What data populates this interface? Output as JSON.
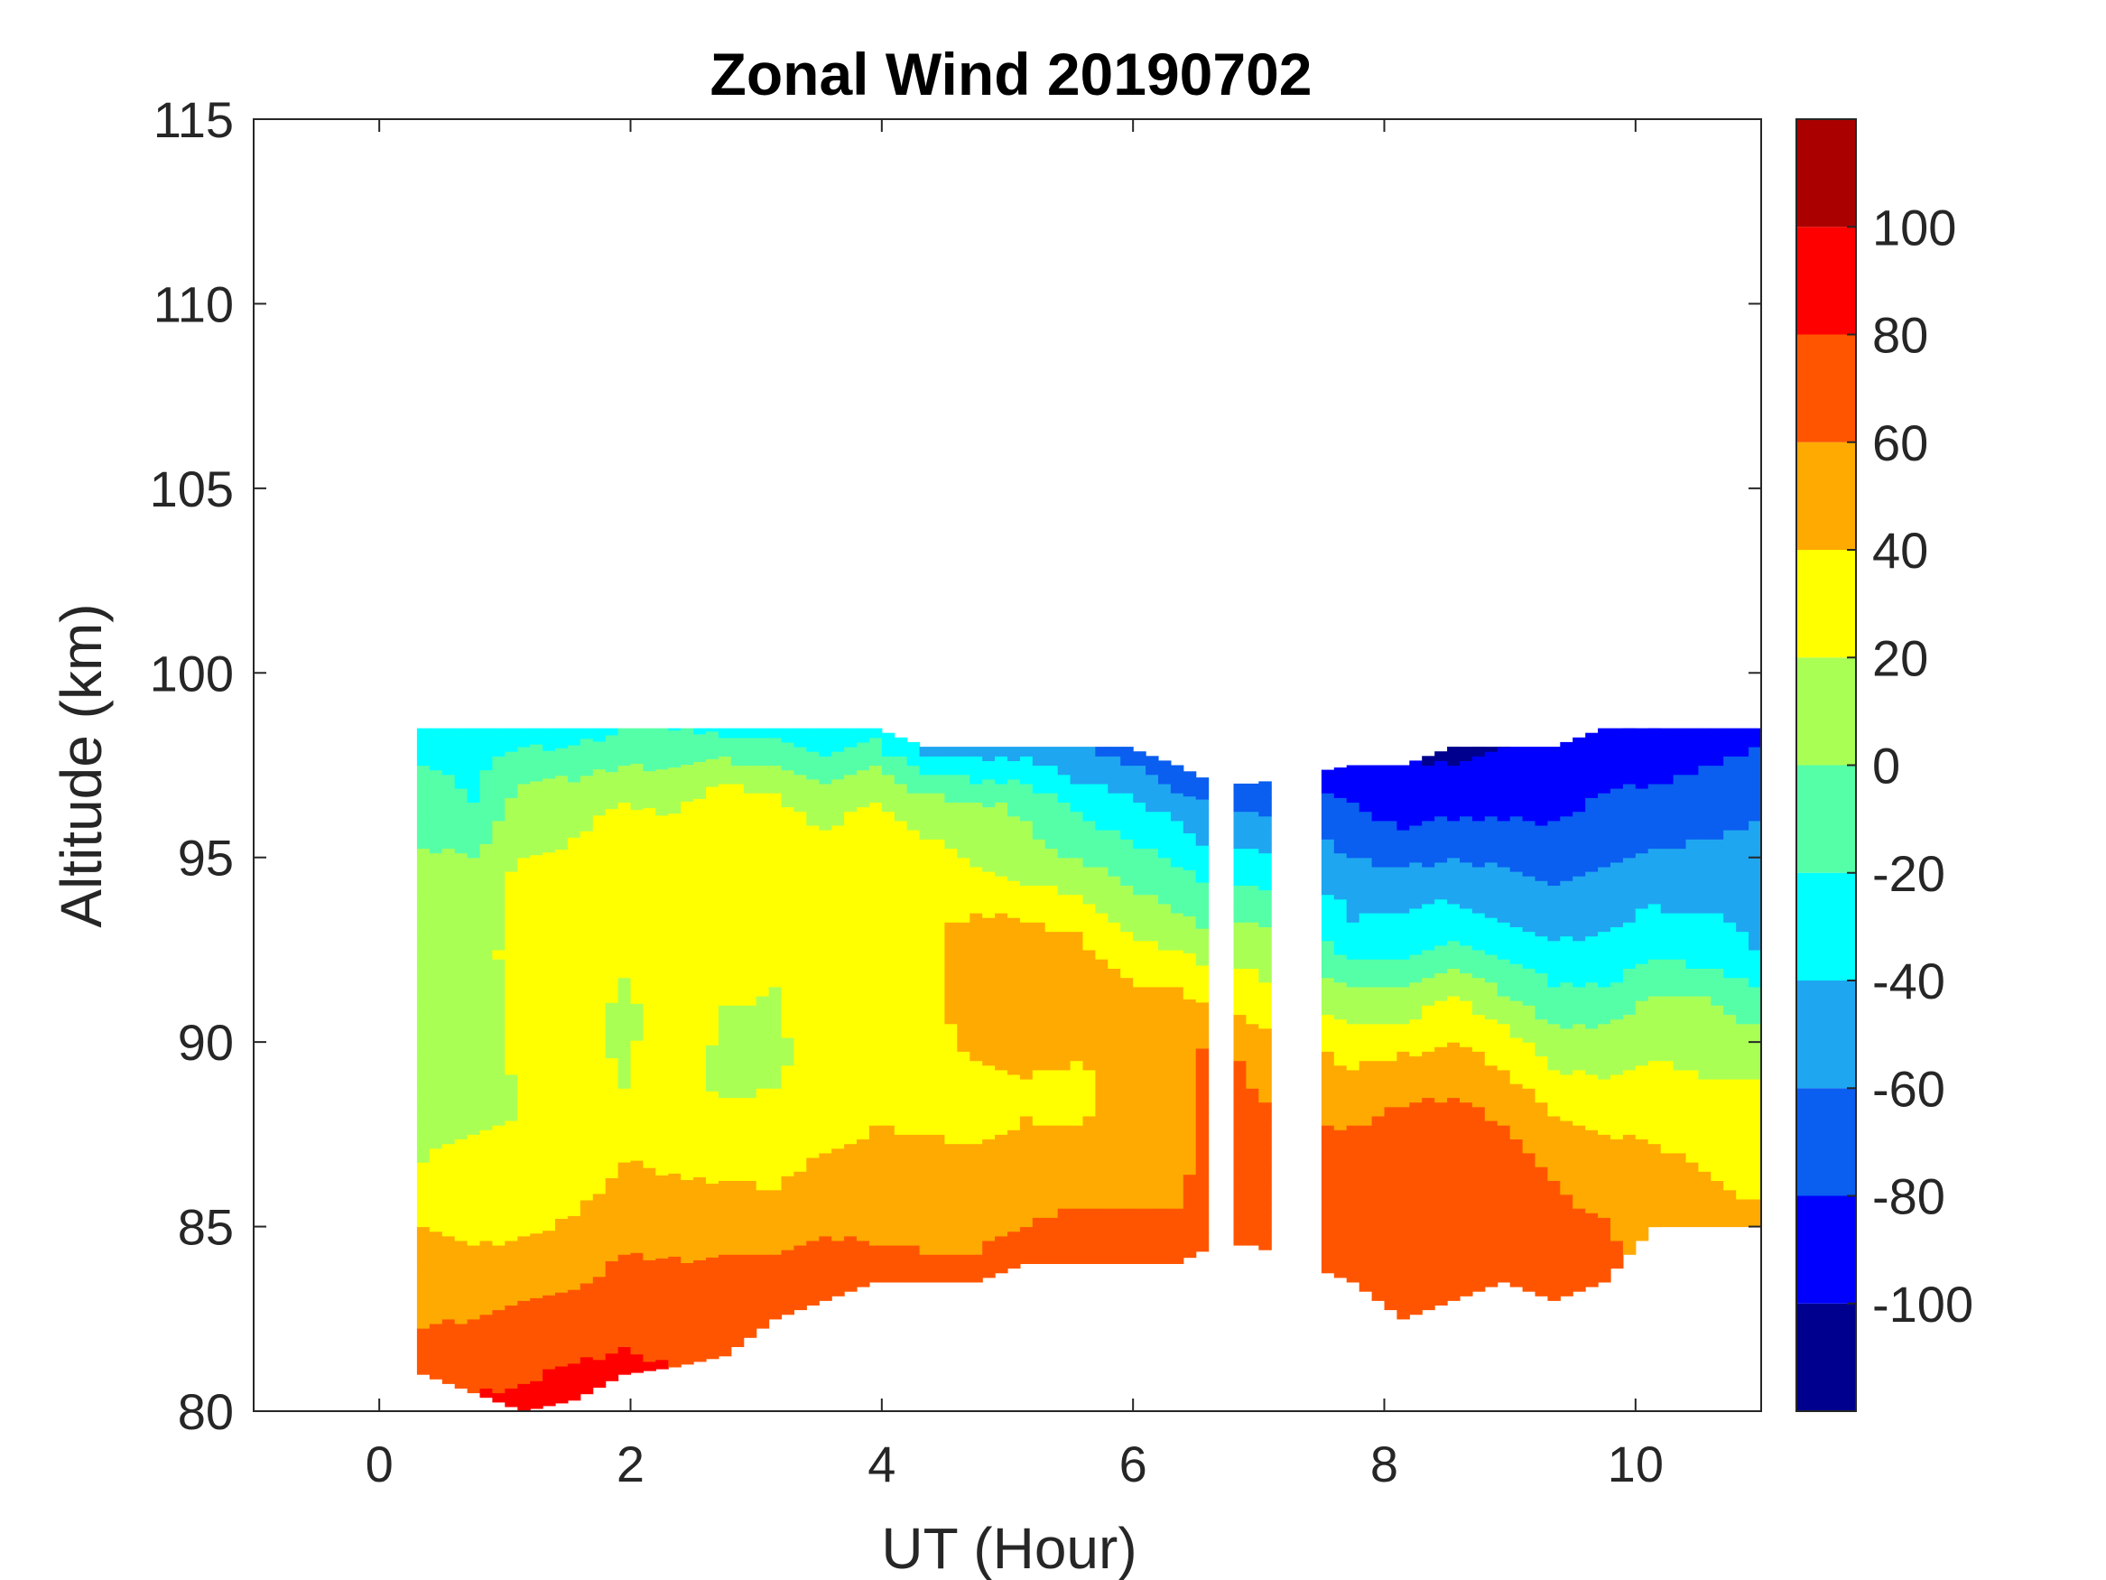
{
  "chart_data": {
    "type": "heatmap",
    "title": "Zonal Wind 20190702",
    "xlabel": "UT (Hour)",
    "ylabel": "Altitude (km)",
    "xlim": [
      -1,
      11
    ],
    "ylim": [
      80,
      115
    ],
    "x_ticks": [
      0,
      2,
      4,
      6,
      8,
      10
    ],
    "y_ticks": [
      80,
      85,
      90,
      95,
      100,
      105,
      110,
      115
    ],
    "colorbar": {
      "range": [
        -120,
        120
      ],
      "ticks": [
        -100,
        -80,
        -60,
        -40,
        -20,
        0,
        20,
        40,
        60,
        80,
        100
      ],
      "levels": [
        {
          "min": -120,
          "max": -100,
          "color": "#00008f"
        },
        {
          "min": -100,
          "max": -80,
          "color": "#0000ff"
        },
        {
          "min": -80,
          "max": -60,
          "color": "#0a5ef0"
        },
        {
          "min": -60,
          "max": -40,
          "color": "#1fa6f0"
        },
        {
          "min": -40,
          "max": -20,
          "color": "#00ffff"
        },
        {
          "min": -20,
          "max": 0,
          "color": "#55ffa8"
        },
        {
          "min": 0,
          "max": 20,
          "color": "#aaff55"
        },
        {
          "min": 20,
          "max": 40,
          "color": "#ffff00"
        },
        {
          "min": 40,
          "max": 60,
          "color": "#ffaa00"
        },
        {
          "min": 60,
          "max": 80,
          "color": "#ff5500"
        },
        {
          "min": 80,
          "max": 100,
          "color": "#ff0000"
        },
        {
          "min": 100,
          "max": 120,
          "color": "#aa0000"
        }
      ]
    },
    "data_columns": [
      {
        "x": 0.3,
        "ymin": 81.0,
        "ymax": 98.5,
        "wind": [
          70,
          55,
          40,
          20,
          15,
          10,
          12,
          5,
          -10,
          -30
        ]
      },
      {
        "x": 0.7,
        "ymin": 80.5,
        "ymax": 98.5,
        "wind": [
          80,
          60,
          40,
          25,
          15,
          12,
          10,
          8,
          -20,
          -30
        ]
      },
      {
        "x": 1.1,
        "ymin": 80.0,
        "ymax": 98.5,
        "wind": [
          85,
          70,
          45,
          25,
          20,
          25,
          30,
          25,
          10,
          -30
        ]
      },
      {
        "x": 1.5,
        "ymin": 80.3,
        "ymax": 98.5,
        "wind": [
          90,
          70,
          50,
          30,
          25,
          28,
          30,
          25,
          15,
          -30
        ]
      },
      {
        "x": 1.9,
        "ymin": 81.0,
        "ymax": 98.5,
        "wind": [
          85,
          70,
          55,
          40,
          20,
          15,
          25,
          35,
          20,
          -20
        ]
      },
      {
        "x": 2.3,
        "ymin": 81.2,
        "ymax": 98.5,
        "wind": [
          80,
          70,
          50,
          35,
          28,
          30,
          35,
          38,
          15,
          -20
        ]
      },
      {
        "x": 2.7,
        "ymin": 81.5,
        "ymax": 98.5,
        "wind": [
          80,
          70,
          50,
          30,
          15,
          20,
          30,
          40,
          30,
          -25
        ]
      },
      {
        "x": 3.1,
        "ymin": 82.5,
        "ymax": 98.5,
        "wind": [
          70,
          60,
          40,
          25,
          15,
          20,
          30,
          35,
          20,
          -25
        ]
      },
      {
        "x": 3.5,
        "ymin": 83.0,
        "ymax": 98.5,
        "wind": [
          75,
          60,
          45,
          30,
          30,
          35,
          30,
          25,
          10,
          -40
        ]
      },
      {
        "x": 3.9,
        "ymin": 83.5,
        "ymax": 98.5,
        "wind": [
          70,
          55,
          45,
          35,
          30,
          30,
          35,
          40,
          15,
          -30
        ]
      },
      {
        "x": 4.3,
        "ymin": 83.5,
        "ymax": 98.0,
        "wind": [
          65,
          55,
          45,
          35,
          30,
          30,
          35,
          30,
          10,
          -45
        ]
      },
      {
        "x": 4.7,
        "ymin": 83.5,
        "ymax": 98.0,
        "wind": [
          65,
          55,
          45,
          30,
          45,
          60,
          45,
          20,
          5,
          -50
        ]
      },
      {
        "x": 5.1,
        "ymin": 84.0,
        "ymax": 98.0,
        "wind": [
          70,
          55,
          45,
          35,
          55,
          55,
          40,
          10,
          -5,
          -50
        ]
      },
      {
        "x": 5.5,
        "ymin": 84.0,
        "ymax": 98.0,
        "wind": [
          75,
          60,
          45,
          30,
          50,
          55,
          35,
          0,
          -25,
          -60
        ]
      },
      {
        "x": 5.9,
        "ymin": 84.0,
        "ymax": 98.0,
        "wind": [
          70,
          60,
          55,
          50,
          45,
          40,
          15,
          -10,
          -35,
          -70
        ]
      },
      {
        "x": 6.3,
        "ymin": 84.0,
        "ymax": 97.5,
        "wind": [
          65,
          60,
          50,
          45,
          45,
          40,
          10,
          -15,
          -40,
          -75
        ]
      },
      {
        "x": 6.6,
        "ymin": 84.5,
        "ymax": 97.0,
        "wind": [
          65,
          70,
          75,
          80,
          65,
          30,
          0,
          -20,
          -50,
          -70
        ]
      },
      {
        "x": 6.9,
        "ymin": 84.5,
        "ymax": 97.0,
        "wind": [
          65,
          70,
          65,
          60,
          50,
          25,
          10,
          -20,
          -45,
          -75
        ]
      },
      {
        "x": 7.7,
        "ymin": 83.5,
        "ymax": 97.5,
        "wind": [
          70,
          75,
          70,
          55,
          35,
          5,
          -35,
          -50,
          -75,
          -90
        ]
      },
      {
        "x": 8.1,
        "ymin": 82.5,
        "ymax": 97.5,
        "wind": [
          75,
          80,
          80,
          70,
          50,
          15,
          -25,
          -50,
          -80,
          -100
        ]
      },
      {
        "x": 8.5,
        "ymin": 83.0,
        "ymax": 98.0,
        "wind": [
          70,
          75,
          75,
          65,
          45,
          20,
          -25,
          -55,
          -85,
          -105
        ]
      },
      {
        "x": 8.9,
        "ymin": 83.5,
        "ymax": 98.0,
        "wind": [
          70,
          75,
          70,
          55,
          30,
          -5,
          -40,
          -60,
          -85,
          -100
        ]
      },
      {
        "x": 9.3,
        "ymin": 83.0,
        "ymax": 98.0,
        "wind": [
          70,
          65,
          60,
          40,
          15,
          -15,
          -45,
          -65,
          -85,
          -100
        ]
      },
      {
        "x": 9.7,
        "ymin": 83.5,
        "ymax": 98.5,
        "wind": [
          65,
          60,
          50,
          25,
          5,
          -25,
          -45,
          -65,
          -80,
          -95
        ]
      },
      {
        "x": 10.1,
        "ymin": 85.0,
        "ymax": 98.5,
        "wind": [
          55,
          45,
          35,
          20,
          5,
          -25,
          -45,
          -65,
          -80,
          -95
        ]
      },
      {
        "x": 10.5,
        "ymin": 85.0,
        "ymax": 98.5,
        "wind": [
          45,
          40,
          30,
          15,
          5,
          -30,
          -45,
          -60,
          -75,
          -90
        ]
      },
      {
        "x": 10.9,
        "ymin": 85.0,
        "ymax": 98.5,
        "wind": [
          45,
          35,
          30,
          15,
          -10,
          -40,
          -45,
          -55,
          -70,
          -85
        ]
      }
    ],
    "data_gaps": [
      [
        6.6,
        6.75
      ],
      [
        7.1,
        7.5
      ]
    ]
  }
}
